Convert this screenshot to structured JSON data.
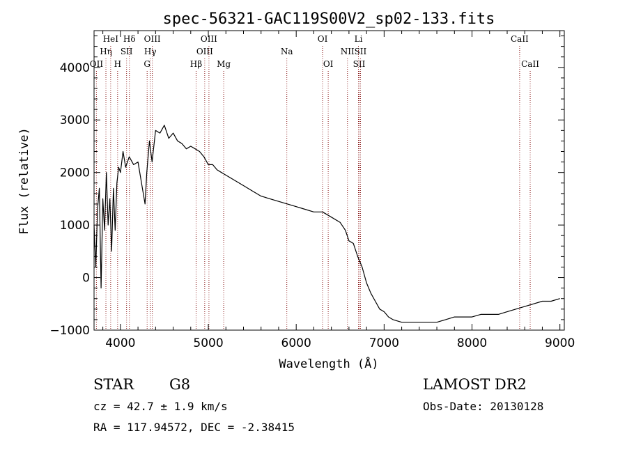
{
  "chart_data": {
    "type": "line",
    "title": "spec-56321-GAC119S00V2_sp02-133.fits",
    "xlabel": "Wavelength (Å)",
    "ylabel": "Flux (relative)",
    "xlim": [
      3700,
      9050
    ],
    "ylim": [
      -1000,
      4700
    ],
    "x_ticks": [
      4000,
      5000,
      6000,
      7000,
      8000,
      9000
    ],
    "y_ticks": [
      -1000,
      0,
      1000,
      2000,
      3000,
      4000
    ],
    "x_tick_labels": [
      "4000",
      "5000",
      "6000",
      "7000",
      "8000",
      "9000"
    ],
    "y_tick_labels": [
      "−1000",
      "0",
      "1000",
      "2000",
      "3000",
      "4000"
    ],
    "grid": false,
    "line_color": "#000000",
    "marker_color": "#8b1a1a",
    "series": [
      {
        "x": [
          3700,
          3720,
          3740,
          3760,
          3780,
          3800,
          3820,
          3840,
          3860,
          3880,
          3900,
          3920,
          3940,
          3960,
          3980,
          4000,
          4030,
          4060,
          4100,
          4150,
          4200,
          4250,
          4280,
          4300,
          4330,
          4360,
          4400,
          4450,
          4500,
          4550,
          4600,
          4650,
          4700,
          4750,
          4800,
          4850,
          4900,
          4950,
          5000,
          5050,
          5100,
          5150,
          5200,
          5300,
          5400,
          5500,
          5600,
          5700,
          5800,
          5900,
          6000,
          6100,
          6200,
          6300,
          6400,
          6500,
          6560,
          6600,
          6650,
          6700,
          6750,
          6800,
          6850,
          6900,
          6950,
          7000,
          7050,
          7100,
          7200,
          7300,
          7400,
          7500,
          7600,
          7700,
          7800,
          7900,
          8000,
          8100,
          8200,
          8300,
          8400,
          8500,
          8600,
          8700,
          8800,
          8900,
          9000
        ],
        "y": [
          1000,
          200,
          1300,
          1700,
          -200,
          1500,
          900,
          2000,
          1000,
          1500,
          500,
          1700,
          900,
          1800,
          2100,
          2000,
          2400,
          2100,
          2300,
          2150,
          2200,
          1700,
          1400,
          2000,
          2600,
          2200,
          2800,
          2750,
          2900,
          2650,
          2750,
          2600,
          2550,
          2450,
          2500,
          2450,
          2400,
          2300,
          2150,
          2150,
          2050,
          2000,
          1950,
          1850,
          1750,
          1650,
          1550,
          1500,
          1450,
          1400,
          1350,
          1300,
          1250,
          1250,
          1150,
          1050,
          900,
          700,
          650,
          400,
          200,
          -100,
          -300,
          -450,
          -600,
          -650,
          -750,
          -800,
          -850,
          -850,
          -850,
          -850,
          -850,
          -800,
          -750,
          -750,
          -750,
          -700,
          -700,
          -700,
          -650,
          -600,
          -550,
          -500,
          -450,
          -450,
          -400
        ]
      }
    ],
    "spectral_lines": [
      {
        "name": "OII",
        "x": 3727,
        "row": 3
      },
      {
        "name": "Hη",
        "x": 3835,
        "row": 2
      },
      {
        "name": "HeI",
        "x": 3889,
        "row": 1
      },
      {
        "name": "H",
        "x": 3968,
        "row": 3
      },
      {
        "name": "SII",
        "x": 4070,
        "row": 2
      },
      {
        "name": "Hδ",
        "x": 4102,
        "row": 1
      },
      {
        "name": "G",
        "x": 4304,
        "row": 3
      },
      {
        "name": "Hγ",
        "x": 4340,
        "row": 2
      },
      {
        "name": "OIII",
        "x": 4363,
        "row": 1
      },
      {
        "name": "Hβ",
        "x": 4861,
        "row": 3
      },
      {
        "name": "OIII",
        "x": 4959,
        "row": 2
      },
      {
        "name": "OIII",
        "x": 5007,
        "row": 1
      },
      {
        "name": "Mg",
        "x": 5175,
        "row": 3
      },
      {
        "name": "Na",
        "x": 5893,
        "row": 2
      },
      {
        "name": "OI",
        "x": 6300,
        "row": 1
      },
      {
        "name": "OI",
        "x": 6364,
        "row": 3
      },
      {
        "name": "NII",
        "x": 6583,
        "row": 2
      },
      {
        "name": "Li",
        "x": 6708,
        "row": 1
      },
      {
        "name": "SII",
        "x": 6716,
        "row": 3
      },
      {
        "name": "SII",
        "x": 6731,
        "row": 2
      },
      {
        "name": "CaII",
        "x": 8542,
        "row": 1
      },
      {
        "name": "CaII",
        "x": 8662,
        "row": 3
      }
    ]
  },
  "info": {
    "class_label": "STAR",
    "subclass": "G8",
    "survey": "LAMOST DR2",
    "cz": "cz = 42.7 ± 1.9 km/s",
    "obs_date": "Obs-Date: 20130128",
    "coords": "RA = 117.94572, DEC =  -2.38415"
  }
}
